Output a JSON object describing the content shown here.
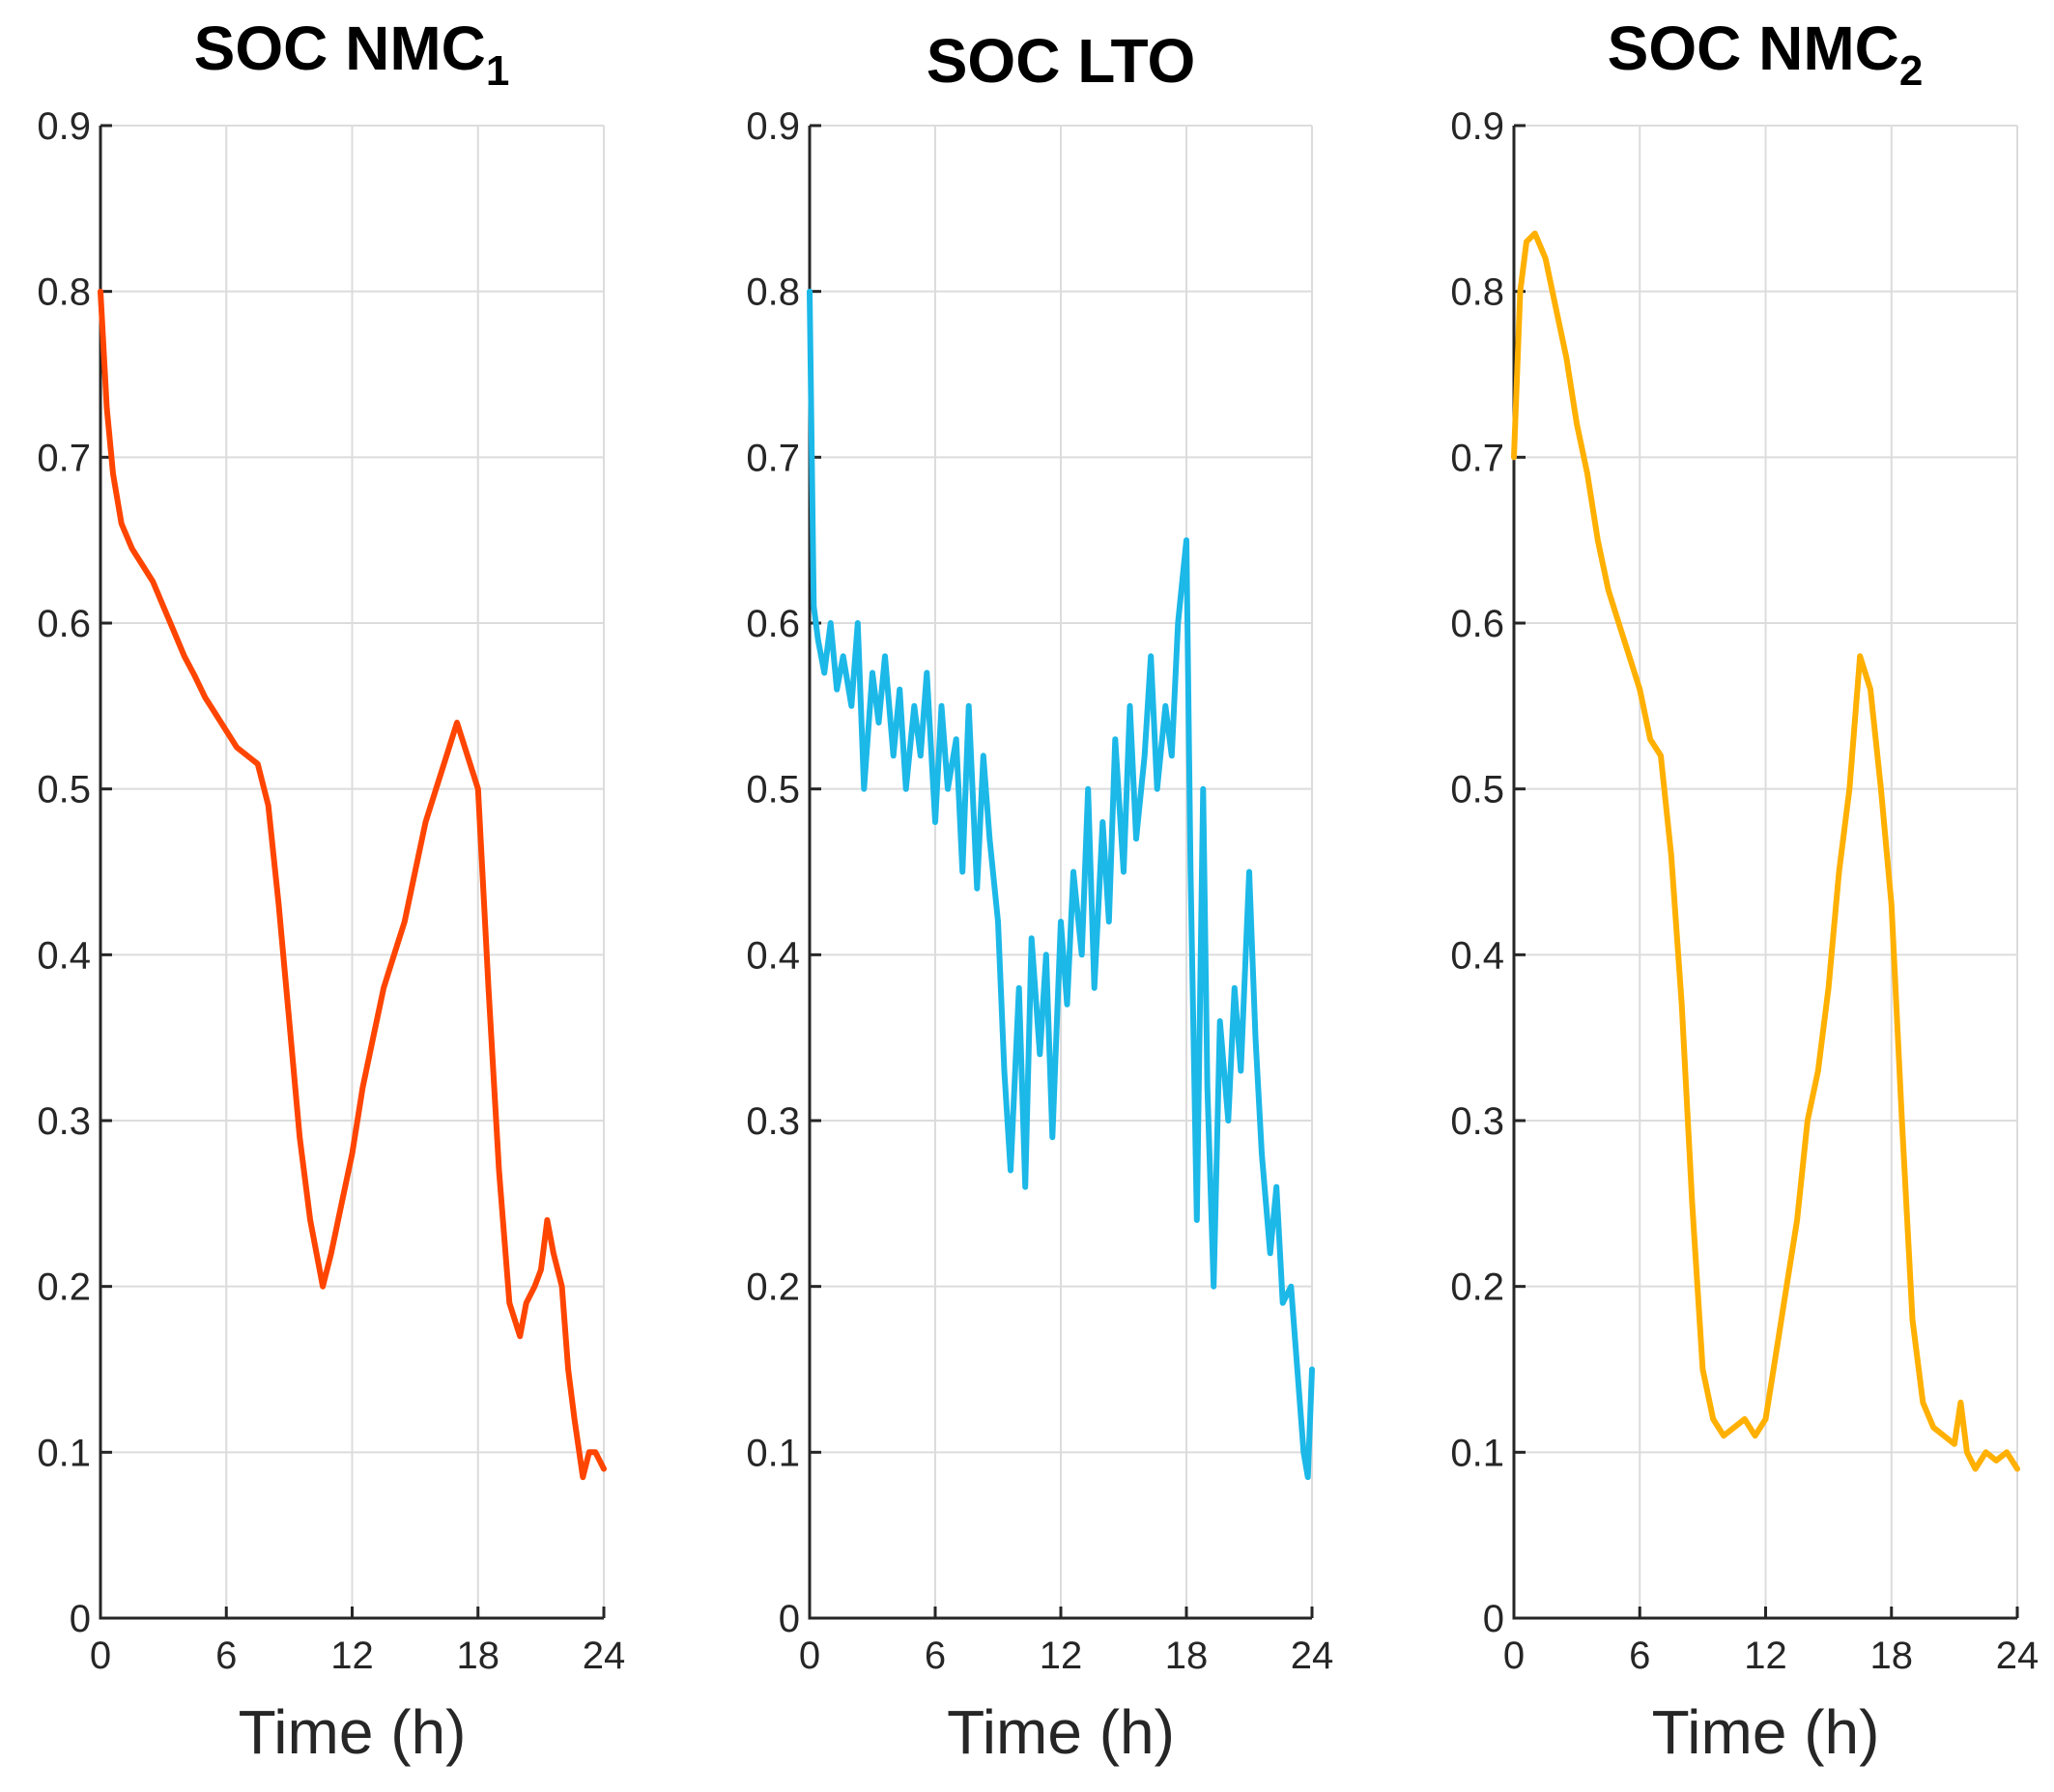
{
  "chart_data": [
    {
      "type": "line",
      "title": "SOC NMC",
      "title_subscript": "1",
      "xlabel": "Time (h)",
      "ylabel": "",
      "xlim": [
        0,
        24
      ],
      "ylim": [
        0,
        0.9
      ],
      "xticks": [
        "0",
        "6",
        "12",
        "18",
        "24"
      ],
      "yticks": [
        "0",
        "0.1",
        "0.2",
        "0.3",
        "0.4",
        "0.5",
        "0.6",
        "0.7",
        "0.8",
        "0.9"
      ],
      "grid": true,
      "color": "#ff4500",
      "series": [
        {
          "name": "SOC NMC1",
          "x": [
            0,
            0.3,
            0.6,
            1,
            1.5,
            2,
            2.5,
            3,
            3.5,
            4,
            4.5,
            5,
            5.5,
            6,
            6.5,
            7,
            7.5,
            8,
            8.5,
            9,
            9.5,
            10,
            10.3,
            10.6,
            11,
            11.5,
            12,
            12.5,
            13,
            13.5,
            14,
            14.5,
            15,
            15.5,
            16,
            16.5,
            17,
            17.5,
            18,
            18.5,
            19,
            19.5,
            20,
            20.3,
            20.7,
            21,
            21.3,
            21.6,
            22,
            22.3,
            22.6,
            23,
            23.3,
            23.6,
            24
          ],
          "y": [
            0.8,
            0.73,
            0.69,
            0.66,
            0.645,
            0.635,
            0.625,
            0.61,
            0.595,
            0.58,
            0.568,
            0.555,
            0.545,
            0.535,
            0.525,
            0.52,
            0.515,
            0.49,
            0.43,
            0.36,
            0.29,
            0.24,
            0.22,
            0.2,
            0.22,
            0.25,
            0.28,
            0.32,
            0.35,
            0.38,
            0.4,
            0.42,
            0.45,
            0.48,
            0.5,
            0.52,
            0.54,
            0.52,
            0.5,
            0.38,
            0.27,
            0.19,
            0.17,
            0.19,
            0.2,
            0.21,
            0.24,
            0.22,
            0.2,
            0.15,
            0.12,
            0.085,
            0.1,
            0.1,
            0.09
          ]
        }
      ]
    },
    {
      "type": "line",
      "title": "SOC LTO",
      "title_subscript": "",
      "xlabel": "Time (h)",
      "ylabel": "",
      "xlim": [
        0,
        24
      ],
      "ylim": [
        0,
        0.9
      ],
      "xticks": [
        "0",
        "6",
        "12",
        "18",
        "24"
      ],
      "yticks": [
        "0",
        "0.1",
        "0.2",
        "0.3",
        "0.4",
        "0.5",
        "0.6",
        "0.7",
        "0.8",
        "0.9"
      ],
      "grid": true,
      "color": "#1cb8e8",
      "series": [
        {
          "name": "SOC LTO",
          "x": [
            0,
            0.2,
            0.4,
            0.7,
            1,
            1.3,
            1.6,
            2,
            2.3,
            2.6,
            3,
            3.3,
            3.6,
            4,
            4.3,
            4.6,
            5,
            5.3,
            5.6,
            6,
            6.3,
            6.6,
            7,
            7.3,
            7.6,
            8,
            8.3,
            8.6,
            9,
            9.3,
            9.6,
            10,
            10.3,
            10.6,
            11,
            11.3,
            11.6,
            12,
            12.3,
            12.6,
            13,
            13.3,
            13.6,
            14,
            14.3,
            14.6,
            15,
            15.3,
            15.6,
            16,
            16.3,
            16.6,
            17,
            17.3,
            17.6,
            18,
            18.2,
            18.5,
            18.8,
            19,
            19.3,
            19.6,
            20,
            20.3,
            20.6,
            21,
            21.3,
            21.6,
            22,
            22.3,
            22.6,
            23,
            23.3,
            23.6,
            23.8,
            24
          ],
          "y": [
            0.8,
            0.61,
            0.59,
            0.57,
            0.6,
            0.56,
            0.58,
            0.55,
            0.6,
            0.5,
            0.57,
            0.54,
            0.58,
            0.52,
            0.56,
            0.5,
            0.55,
            0.52,
            0.57,
            0.48,
            0.55,
            0.5,
            0.53,
            0.45,
            0.55,
            0.44,
            0.52,
            0.47,
            0.42,
            0.33,
            0.27,
            0.38,
            0.26,
            0.41,
            0.34,
            0.4,
            0.29,
            0.42,
            0.37,
            0.45,
            0.4,
            0.5,
            0.38,
            0.48,
            0.42,
            0.53,
            0.45,
            0.55,
            0.47,
            0.52,
            0.58,
            0.5,
            0.55,
            0.52,
            0.6,
            0.65,
            0.45,
            0.24,
            0.5,
            0.32,
            0.2,
            0.36,
            0.3,
            0.38,
            0.33,
            0.45,
            0.35,
            0.28,
            0.22,
            0.26,
            0.19,
            0.2,
            0.15,
            0.1,
            0.085,
            0.15
          ]
        }
      ]
    },
    {
      "type": "line",
      "title": "SOC NMC",
      "title_subscript": "2",
      "xlabel": "Time (h)",
      "ylabel": "",
      "xlim": [
        0,
        24
      ],
      "ylim": [
        0,
        0.9
      ],
      "xticks": [
        "0",
        "6",
        "12",
        "18",
        "24"
      ],
      "yticks": [
        "0",
        "0.1",
        "0.2",
        "0.3",
        "0.4",
        "0.5",
        "0.6",
        "0.7",
        "0.8",
        "0.9"
      ],
      "grid": true,
      "color": "#ffb000",
      "series": [
        {
          "name": "SOC NMC2",
          "x": [
            0,
            0.3,
            0.6,
            1,
            1.5,
            2,
            2.5,
            3,
            3.5,
            4,
            4.5,
            5,
            5.5,
            6,
            6.5,
            7,
            7.5,
            8,
            8.5,
            9,
            9.5,
            10,
            10.5,
            11,
            11.5,
            12,
            12.5,
            13,
            13.5,
            14,
            14.5,
            15,
            15.5,
            16,
            16.5,
            17,
            17.5,
            18,
            18.5,
            19,
            19.5,
            20,
            20.5,
            21,
            21.3,
            21.6,
            22,
            22.5,
            23,
            23.5,
            24
          ],
          "y": [
            0.7,
            0.8,
            0.83,
            0.835,
            0.82,
            0.79,
            0.76,
            0.72,
            0.69,
            0.65,
            0.62,
            0.6,
            0.58,
            0.56,
            0.53,
            0.52,
            0.46,
            0.37,
            0.25,
            0.15,
            0.12,
            0.11,
            0.115,
            0.12,
            0.11,
            0.12,
            0.16,
            0.2,
            0.24,
            0.3,
            0.33,
            0.38,
            0.45,
            0.5,
            0.58,
            0.56,
            0.5,
            0.43,
            0.3,
            0.18,
            0.13,
            0.115,
            0.11,
            0.105,
            0.13,
            0.1,
            0.09,
            0.1,
            0.095,
            0.1,
            0.09
          ]
        }
      ]
    }
  ]
}
